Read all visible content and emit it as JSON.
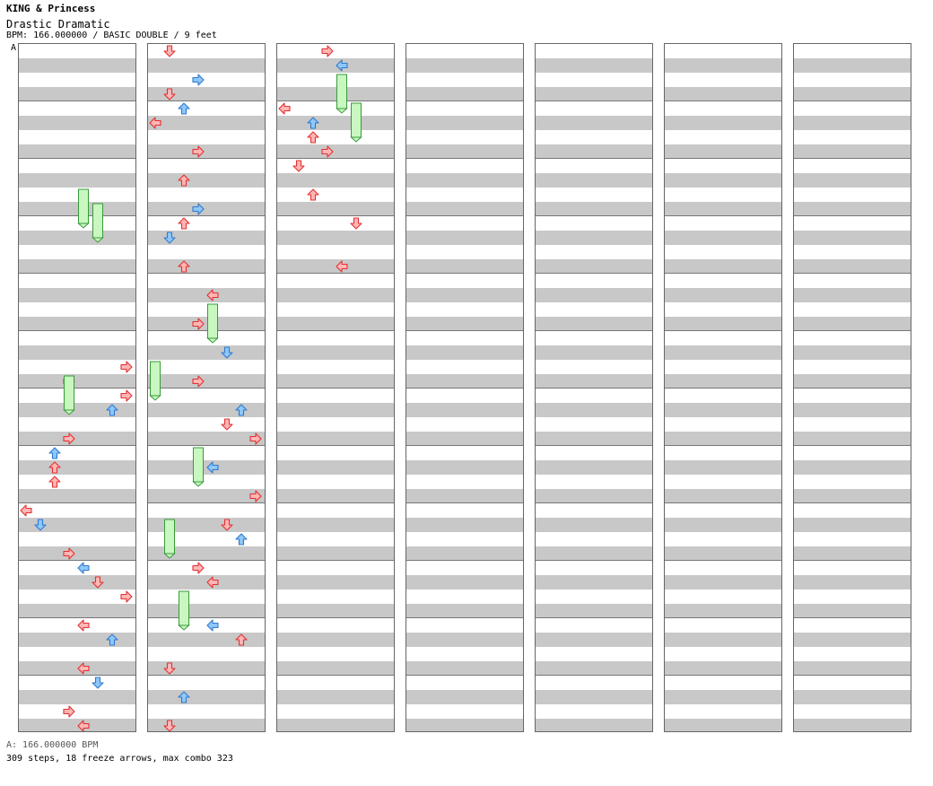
{
  "song": {
    "artist": "KING & Princess",
    "title": "Drastic Dramatic",
    "meta": "BPM: 166.000000 / BASIC DOUBLE / 9 feet",
    "marker": "A"
  },
  "footer": {
    "bpm": "A: 166.000000 BPM",
    "stats": "309 steps, 18 freeze arrows, max combo 323"
  },
  "colors": {
    "red_fill": "#ffb6b6",
    "red_stroke": "#e23030",
    "blue_fill": "#8ec8f8",
    "blue_stroke": "#2f78cf",
    "pink_fill": "#ffb8f4",
    "pink_stroke": "#c238c0",
    "freeze_fill": "#c8f7c0",
    "freeze_stroke": "#3a9a3a"
  },
  "chart": {
    "columns": 7,
    "measures_per_column": 12,
    "beats_per_measure": 4,
    "lanes": [
      "L",
      "D",
      "U",
      "R",
      "L",
      "D",
      "U",
      "R"
    ],
    "note_key": "[measure, beat, lane, color]",
    "notes": [
      [
        5,
        2,
        7,
        "r"
      ],
      [
        5,
        3,
        3,
        "r"
      ],
      [
        6,
        0,
        7,
        "r"
      ],
      [
        6,
        1,
        6,
        "b"
      ],
      [
        6,
        3,
        3,
        "r"
      ],
      [
        7,
        0,
        2,
        "b"
      ],
      [
        7,
        1,
        2,
        "r"
      ],
      [
        7,
        2,
        2,
        "r"
      ],
      [
        8,
        0,
        0,
        "r"
      ],
      [
        8,
        1,
        1,
        "b"
      ],
      [
        8,
        3,
        3,
        "r"
      ],
      [
        9,
        0,
        4,
        "b"
      ],
      [
        9,
        1,
        5,
        "r"
      ],
      [
        9,
        2,
        7,
        "r"
      ],
      [
        10,
        0,
        4,
        "r"
      ],
      [
        10,
        1,
        6,
        "b"
      ],
      [
        10,
        3,
        4,
        "r"
      ],
      [
        11,
        0,
        5,
        "b"
      ],
      [
        11,
        2,
        3,
        "r"
      ],
      [
        11,
        3,
        4,
        "r"
      ],
      [
        12,
        0,
        1,
        "r"
      ],
      [
        12,
        2,
        3,
        "b"
      ],
      [
        12,
        3,
        1,
        "r"
      ],
      [
        13,
        0,
        2,
        "b"
      ],
      [
        13,
        1,
        0,
        "r"
      ],
      [
        13,
        3,
        3,
        "r"
      ],
      [
        14,
        1,
        2,
        "r"
      ],
      [
        14,
        3,
        3,
        "b"
      ],
      [
        15,
        0,
        2,
        "r"
      ],
      [
        15,
        1,
        1,
        "b"
      ],
      [
        15,
        3,
        2,
        "r"
      ],
      [
        16,
        1,
        4,
        "r"
      ],
      [
        16,
        3,
        3,
        "r"
      ],
      [
        17,
        1,
        5,
        "b"
      ],
      [
        17,
        3,
        3,
        "r"
      ],
      [
        18,
        1,
        6,
        "b"
      ],
      [
        18,
        2,
        5,
        "r"
      ],
      [
        18,
        3,
        7,
        "r"
      ],
      [
        19,
        1,
        4,
        "b"
      ],
      [
        19,
        3,
        7,
        "r"
      ],
      [
        20,
        1,
        5,
        "r"
      ],
      [
        20,
        2,
        6,
        "b"
      ],
      [
        21,
        0,
        3,
        "r"
      ],
      [
        21,
        1,
        4,
        "r"
      ],
      [
        22,
        0,
        4,
        "b"
      ],
      [
        22,
        1,
        6,
        "r"
      ],
      [
        22,
        3,
        1,
        "r"
      ],
      [
        23,
        1,
        2,
        "b"
      ],
      [
        23,
        3,
        1,
        "r"
      ],
      [
        24,
        0,
        3,
        "r"
      ],
      [
        24,
        1,
        4,
        "b"
      ],
      [
        25,
        0,
        0,
        "r"
      ],
      [
        25,
        1,
        2,
        "b"
      ],
      [
        25,
        2,
        2,
        "r"
      ],
      [
        25,
        3,
        3,
        "r"
      ],
      [
        26,
        0,
        1,
        "r"
      ],
      [
        26,
        2,
        2,
        "r"
      ],
      [
        27,
        0,
        5,
        "r"
      ],
      [
        27,
        3,
        4,
        "r"
      ]
    ],
    "freezes": [
      [
        2,
        2,
        4,
        "down"
      ],
      [
        2,
        3,
        5,
        "down"
      ],
      [
        5,
        3,
        3,
        "up"
      ],
      [
        16,
        2,
        4,
        "up"
      ],
      [
        17,
        2,
        0,
        "up"
      ],
      [
        19,
        0,
        3,
        "up"
      ],
      [
        20,
        1,
        1,
        "up"
      ],
      [
        21,
        2,
        2,
        "down"
      ],
      [
        24,
        2,
        4,
        "down"
      ],
      [
        25,
        0,
        5,
        "down"
      ]
    ]
  }
}
